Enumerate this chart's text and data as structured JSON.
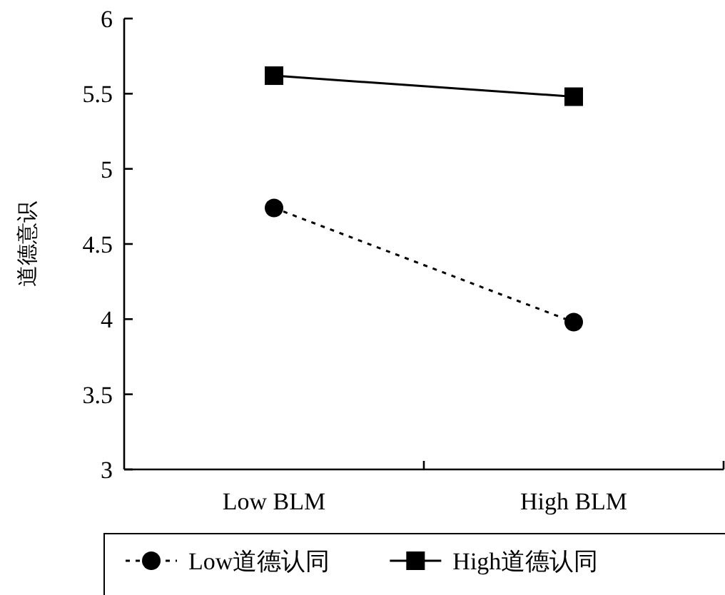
{
  "chart_data": {
    "type": "line",
    "ylabel": "道德意识",
    "categories": [
      "Low BLM",
      "High BLM"
    ],
    "series": [
      {
        "name": "Low道德认同",
        "color": "#000000",
        "values": [
          4.74,
          3.98
        ],
        "marker": "circle",
        "line_style": "dotted"
      },
      {
        "name": "High道德认同",
        "color": "#000000",
        "values": [
          5.62,
          5.48
        ],
        "marker": "square",
        "line_style": "solid"
      }
    ],
    "ylim": [
      3,
      6
    ],
    "yticks": [
      3,
      {
        "value": 3.5,
        "label": "3.5"
      },
      4,
      {
        "value": 4.5,
        "label": "4.5"
      },
      5,
      {
        "value": 5.5,
        "label": "5.5"
      },
      6
    ],
    "grid": false,
    "legend": "bottom"
  }
}
